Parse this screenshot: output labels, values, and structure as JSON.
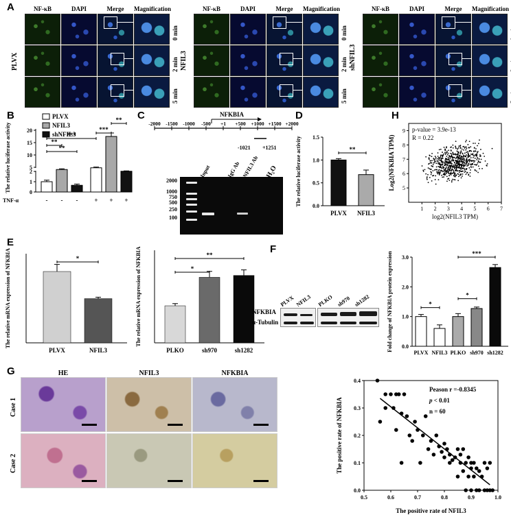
{
  "panels": {
    "A": "A",
    "B": "B",
    "C": "C",
    "D": "D",
    "E": "E",
    "F": "F",
    "G": "G",
    "H": "H"
  },
  "panelA": {
    "columns": [
      "NF-κB",
      "DAPI",
      "Merge",
      "Magnification"
    ],
    "rows": [
      "0 min",
      "2 min",
      "5 min"
    ],
    "groups": [
      "PLVX",
      "NFIL3",
      "shNFIL3"
    ]
  },
  "panelB": {
    "legend": [
      "PLVX",
      "NFIL3",
      "shNFIL3"
    ],
    "ylabel": "The relative luciferase activity",
    "tnf_label": "TNF-α",
    "tnf_signs": [
      "-",
      "-",
      "-",
      "+",
      "+",
      "+"
    ],
    "sig": [
      "**",
      "**",
      "***",
      "***",
      "**"
    ]
  },
  "panelC": {
    "gene": "NFKBIA",
    "positions": [
      "-2000",
      "-1500",
      "-1000",
      "-500",
      "+1",
      "+500",
      "+1000",
      "+1500",
      "+2000"
    ],
    "amplicon_start": "-1021",
    "amplicon_end": "+1251",
    "lanes": [
      "Input",
      "IgG Ab",
      "NFIL3 Ab",
      "H₂O"
    ],
    "ladder": [
      "2000",
      "1000",
      "750",
      "500",
      "250",
      "100"
    ]
  },
  "panelD": {
    "ylabel": "The relative luciferase activity",
    "sig": "**"
  },
  "panelE": {
    "ylabel1": "The relative mRNA expression of NFKBIA",
    "ylabel2": "The relative mRNA expression of NFKBIA",
    "sig1": "*",
    "sig2": [
      "*",
      "**"
    ]
  },
  "panelF": {
    "lanes": [
      "PLVX",
      "NFIL3",
      "PLKO",
      "sh970",
      "sh1282"
    ],
    "proteins": [
      "NFKBIA",
      "α-Tubulin"
    ],
    "ylabel": "Fold change of NFKBIA protein expression",
    "sig": [
      "*",
      "*",
      "***"
    ]
  },
  "panelG": {
    "columns": [
      "HE",
      "NFIL3",
      "NFKBIA"
    ],
    "rows": [
      "Case 1",
      "Case 2"
    ],
    "pearson": "Peason r =-0.8345",
    "p_prefix": "p",
    "p_suffix": " < 0.01",
    "n": "n = 60",
    "xlabel": "The positive rate of NFIL3",
    "ylabel": "The positive rate of NFKBIA"
  },
  "panelH": {
    "pvalue": "p-value = 3.9e-13",
    "r": "R = 0.22",
    "xlabel": "log2(NFIL3 TPM)",
    "ylabel": "Log2(NFKBIA TPM)"
  },
  "chart_data": [
    {
      "id": "B",
      "type": "bar",
      "categories": [
        "-",
        "-",
        "-",
        "+",
        "+",
        "+"
      ],
      "series": [
        {
          "name": "PLVX",
          "values": [
            1.0,
            null,
            null,
            4.8,
            null,
            null
          ]
        },
        {
          "name": "NFIL3",
          "values": [
            null,
            4.1,
            null,
            null,
            17.5,
            null
          ]
        },
        {
          "name": "shNFIL3",
          "values": [
            null,
            null,
            0.65,
            null,
            null,
            3.4
          ]
        }
      ],
      "values": [
        1.0,
        4.1,
        0.65,
        4.8,
        17.5,
        3.4
      ],
      "errors": [
        0.15,
        0.3,
        0.12,
        0.3,
        1.4,
        0.15
      ],
      "colors": [
        "#ffffff",
        "#a8a8a8",
        "#111111",
        "#ffffff",
        "#a8a8a8",
        "#111111"
      ],
      "axis": {
        "segments": [
          [
            0,
            2,
            [
              0,
              1,
              2
            ]
          ],
          [
            2,
            5,
            [
              5,
              10,
              15,
              20
            ]
          ]
        ]
      },
      "ylabel": "The relative luciferase activity"
    },
    {
      "id": "D",
      "type": "bar",
      "categories": [
        "PLVX",
        "NFIL3"
      ],
      "values": [
        1.0,
        0.68
      ],
      "errors": [
        0.03,
        0.1
      ],
      "colors": [
        "#111111",
        "#aaaaaa"
      ],
      "ylim": [
        0.0,
        1.5
      ],
      "yticks": [
        0.0,
        0.5,
        1.0,
        1.5
      ],
      "ylabel": "The relative luciferase activity"
    },
    {
      "id": "E1",
      "type": "bar",
      "categories": [
        "PLVX",
        "NFIL3"
      ],
      "values": [
        1.0,
        0.62
      ],
      "errors": [
        0.1,
        0.02
      ],
      "colors": [
        "#d0d0d0",
        "#555555"
      ],
      "ylim": [
        0,
        1.25
      ],
      "ylabel": "The relative mRNA expression of NFKBIA"
    },
    {
      "id": "E2",
      "type": "bar",
      "categories": [
        "PLKO",
        "sh970",
        "sh1282"
      ],
      "values": [
        1.0,
        1.77,
        1.82
      ],
      "errors": [
        0.06,
        0.16,
        0.15
      ],
      "colors": [
        "#d8d8d8",
        "#6a6a6a",
        "#0a0a0a"
      ],
      "ylim": [
        0,
        2.5
      ],
      "ylabel": "The relative mRNA expression of NFKBIA"
    },
    {
      "id": "F",
      "type": "bar",
      "categories": [
        "PLVX",
        "NFIL3",
        "PLKO",
        "sh970",
        "sh1282"
      ],
      "values": [
        1.0,
        0.6,
        1.0,
        1.27,
        2.65
      ],
      "errors": [
        0.07,
        0.12,
        0.1,
        0.05,
        0.1
      ],
      "colors": [
        "#ffffff",
        "#ffffff",
        "#aaaaaa",
        "#888888",
        "#0a0a0a"
      ],
      "ylim": [
        0.0,
        3.0
      ],
      "yticks": [
        0.0,
        1.0,
        2.0,
        3.0
      ],
      "ylabel": "Fold change of NFKBIA protein expression"
    },
    {
      "id": "G",
      "type": "scatter",
      "xlim": [
        0.5,
        1.0
      ],
      "xticks": [
        0.5,
        0.6,
        0.7,
        0.8,
        0.9,
        1.0
      ],
      "ylim": [
        0.0,
        0.4
      ],
      "yticks": [
        0.0,
        0.1,
        0.2,
        0.3,
        0.4
      ],
      "x": [
        0.55,
        0.56,
        0.58,
        0.58,
        0.6,
        0.61,
        0.62,
        0.62,
        0.63,
        0.64,
        0.64,
        0.65,
        0.66,
        0.67,
        0.68,
        0.69,
        0.7,
        0.71,
        0.72,
        0.73,
        0.74,
        0.75,
        0.76,
        0.77,
        0.78,
        0.79,
        0.8,
        0.8,
        0.81,
        0.82,
        0.82,
        0.83,
        0.84,
        0.85,
        0.85,
        0.86,
        0.86,
        0.87,
        0.87,
        0.88,
        0.88,
        0.89,
        0.89,
        0.9,
        0.9,
        0.9,
        0.91,
        0.91,
        0.92,
        0.92,
        0.93,
        0.93,
        0.94,
        0.95,
        0.95,
        0.96,
        0.96,
        0.97,
        0.97,
        0.98
      ],
      "y": [
        0.4,
        0.25,
        0.35,
        0.3,
        0.35,
        0.3,
        0.35,
        0.22,
        0.35,
        0.28,
        0.1,
        0.35,
        0.27,
        0.2,
        0.18,
        0.25,
        0.22,
        0.1,
        0.2,
        0.27,
        0.15,
        0.18,
        0.13,
        0.2,
        0.16,
        0.14,
        0.17,
        0.12,
        0.15,
        0.1,
        0.13,
        0.11,
        0.12,
        0.15,
        0.05,
        0.13,
        0.1,
        0.15,
        0.07,
        0.1,
        0.0,
        0.12,
        0.05,
        0.1,
        0.08,
        0.0,
        0.1,
        0.05,
        0.08,
        0.0,
        0.07,
        0.0,
        0.05,
        0.1,
        0.0,
        0.0,
        0.08,
        0.0,
        0.1,
        0.0
      ],
      "xlabel": "The positive rate of NFIL3",
      "ylabel": "The positive rate of NFKBIA"
    },
    {
      "id": "H",
      "type": "scatter",
      "xlim": [
        0,
        7
      ],
      "xticks": [
        1,
        2,
        3,
        4,
        5,
        6,
        7
      ],
      "ylim": [
        4,
        9.5
      ],
      "yticks": [
        5,
        6,
        7,
        8,
        9
      ],
      "center": [
        3.6,
        6.8
      ],
      "r": "0.22",
      "xlabel": "log2(NFIL3 TPM)",
      "ylabel": "Log2(NFKBIA TPM)"
    }
  ]
}
